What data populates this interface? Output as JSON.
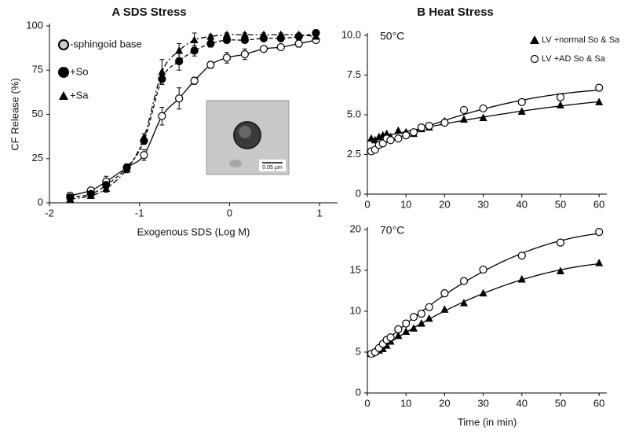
{
  "chart_data": [
    {
      "type": "line",
      "title": "A  SDS Stress",
      "xlabel": "Exogenous SDS (Log M)",
      "ylabel": "CF Release (%)",
      "x": [
        -1.77,
        -1.54,
        -1.37,
        -1.14,
        -0.95,
        -0.75,
        -0.56,
        -0.39,
        -0.21,
        -0.03,
        0.17,
        0.38,
        0.57,
        0.77,
        0.96
      ],
      "series": [
        {
          "name": "-sphingoid base",
          "color": "#000000",
          "marker": "open-circle",
          "line_style": "solid",
          "values": [
            4,
            7,
            12,
            20,
            27,
            49,
            59,
            69,
            78,
            82,
            84,
            87,
            88,
            90,
            92
          ],
          "errors": [
            1,
            1,
            3,
            2,
            3,
            5,
            6,
            2,
            2,
            3,
            3,
            1,
            1,
            2,
            1
          ]
        },
        {
          "name": "+So",
          "color": "#000000",
          "marker": "circle",
          "line_style": "dashed",
          "values": [
            3,
            5,
            10,
            20,
            35,
            70,
            80,
            86,
            90,
            92,
            92,
            93,
            93,
            94,
            96
          ],
          "errors": [
            1,
            1,
            2,
            2,
            2,
            3,
            5,
            3,
            2,
            1,
            1,
            1,
            1,
            1,
            1
          ]
        },
        {
          "name": "+Sa",
          "color": "#000000",
          "marker": "triangle",
          "line_style": "dashdot",
          "values": [
            2,
            4,
            8,
            19,
            37,
            74,
            86,
            92,
            94,
            95,
            95,
            95,
            95,
            95,
            94
          ],
          "errors": [
            1,
            1,
            2,
            2,
            2,
            7,
            4,
            4,
            1,
            1,
            1,
            1,
            1,
            1,
            1
          ]
        }
      ],
      "xlim": [
        -2,
        1.2
      ],
      "xticks": [
        -2,
        -1,
        0,
        1
      ],
      "ylim": [
        0,
        100
      ],
      "yticks": [
        0,
        25,
        50,
        75,
        100
      ],
      "legend": "upper left",
      "inset_label": "0.05 µm"
    },
    {
      "type": "scatter",
      "title": "B  Heat Stress",
      "annotation": "50°C",
      "x": [
        1,
        2,
        3,
        4,
        5,
        6,
        8,
        10,
        12,
        14,
        16,
        20,
        25,
        30,
        40,
        50,
        60
      ],
      "series": [
        {
          "name": "LV +normal So & Sa",
          "color": "#000000",
          "marker": "triangle",
          "values": [
            3.5,
            3.4,
            3.6,
            3.7,
            3.8,
            3.6,
            4.0,
            3.9,
            3.8,
            4.1,
            4.2,
            4.6,
            4.7,
            4.8,
            5.2,
            5.6,
            5.8
          ]
        },
        {
          "name": "LV +AD So & Sa",
          "color": "#000000",
          "marker": "open-circle",
          "values": [
            2.7,
            2.8,
            3.1,
            3.2,
            3.5,
            3.4,
            3.5,
            3.7,
            3.9,
            4.2,
            4.3,
            4.5,
            5.3,
            5.4,
            5.8,
            6.1,
            6.7
          ]
        }
      ],
      "xlim": [
        0,
        62
      ],
      "xticks": [
        0,
        10,
        20,
        30,
        40,
        50,
        60
      ],
      "ylim": [
        0,
        10
      ],
      "yticks": [
        0,
        2.5,
        {
          "value": 5,
          "label": "5.0"
        },
        7.5,
        {
          "value": 10,
          "label": "10.0"
        }
      ],
      "legend": "upper right"
    },
    {
      "type": "scatter",
      "annotation": "70°C",
      "xlabel": "Time (in min)",
      "x": [
        1,
        2,
        3,
        4,
        5,
        6,
        8,
        10,
        12,
        14,
        16,
        20,
        25,
        30,
        40,
        50,
        60
      ],
      "series": [
        {
          "name": "LV +normal So & Sa",
          "color": "#000000",
          "marker": "triangle",
          "values": [
            4.8,
            5.0,
            5.2,
            5.4,
            5.8,
            6.3,
            7.0,
            7.5,
            7.9,
            8.5,
            9.1,
            10.2,
            11.0,
            12.2,
            13.9,
            14.9,
            15.9
          ]
        },
        {
          "name": "LV +AD So & Sa",
          "color": "#000000",
          "marker": "open-circle",
          "values": [
            4.8,
            5.0,
            5.5,
            6.0,
            6.5,
            6.8,
            7.8,
            8.5,
            9.3,
            9.7,
            10.5,
            12.2,
            13.7,
            15.1,
            16.8,
            18.4,
            19.7
          ]
        }
      ],
      "xlim": [
        0,
        62
      ],
      "xticks": [
        0,
        10,
        20,
        30,
        40,
        50,
        60
      ],
      "ylim": [
        0,
        20
      ],
      "yticks": [
        0,
        5,
        10,
        15,
        20
      ]
    }
  ]
}
